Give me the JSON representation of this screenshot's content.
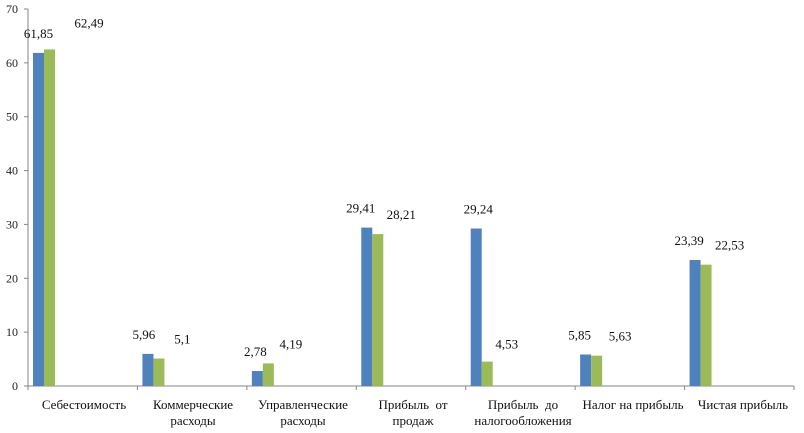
{
  "chart_data": {
    "type": "bar",
    "categories": [
      [
        "Себестоимость"
      ],
      [
        "Коммерческие",
        "расходы"
      ],
      [
        "Управленческие",
        "расходы"
      ],
      [
        "Прибыль  от",
        "продаж"
      ],
      [
        "Прибыль  до",
        "налогообложения"
      ],
      [
        "Налог на прибыль"
      ],
      [
        "Чистая прибыль"
      ]
    ],
    "series": [
      {
        "values": [
          61.85,
          5.96,
          2.78,
          29.41,
          29.24,
          5.85,
          23.39
        ],
        "labels": [
          "61,85",
          "5,96",
          "2,78",
          "29,41",
          "29,24",
          "5,85",
          "23,39"
        ],
        "color": "#4f81bd"
      },
      {
        "values": [
          62.49,
          5.1,
          4.19,
          28.21,
          4.53,
          5.63,
          22.53
        ],
        "labels": [
          "62,49",
          "5,1",
          "4,19",
          "28,21",
          "4,53",
          "5,63",
          "22,53"
        ],
        "color": "#9bbb59"
      }
    ],
    "yticks": [
      "0",
      "10",
      "20",
      "30",
      "40",
      "50",
      "60",
      "70"
    ],
    "ylim": [
      0,
      70
    ],
    "grid": false,
    "legend": "none",
    "axis_color": "#868686"
  }
}
